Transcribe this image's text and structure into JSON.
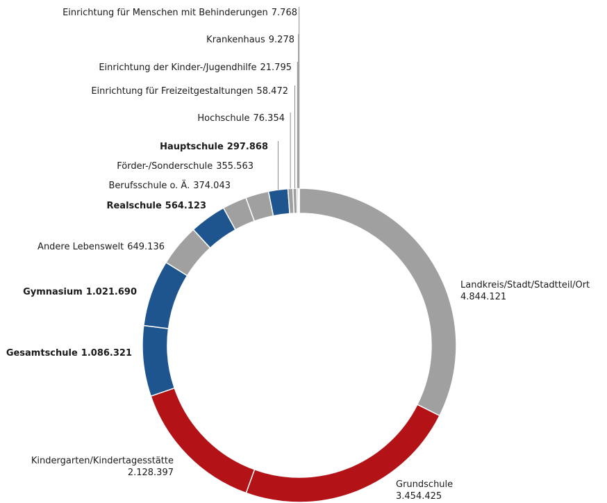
{
  "chart_data": {
    "type": "donut",
    "categories": [
      "Landkreis/Stadt/Stadtteil/Ort",
      "Grundschule",
      "Kindergarten/Kindertagesstätte",
      "Gesamtschule",
      "Gymnasium",
      "Andere Lebenswelt",
      "Realschule",
      "Berufsschule o. Ä.",
      "Förder-/Sonderschule",
      "Hauptschule",
      "Hochschule",
      "Einrichtung für Freizeitgestaltungen",
      "Einrichtung der Kinder-/Jugendhilfe",
      "Krankenhaus",
      "Einrichtung für Menschen mit Behinderungen"
    ],
    "values": [
      4844121,
      3454425,
      2128397,
      1086321,
      1021690,
      649136,
      564123,
      374043,
      355563,
      297868,
      76354,
      58472,
      21795,
      9278,
      7768
    ],
    "value_labels": [
      "4.844.121",
      "3.454.425",
      "2.128.397",
      "1.086.321",
      "1.021.690",
      "649.136",
      "564.123",
      "374.043",
      "355.563",
      "297.868",
      "76.354",
      "58.472",
      "21.795",
      "9.278",
      "7.768"
    ],
    "colors": [
      "#a0a0a0",
      "#b31217",
      "#b31217",
      "#1f558f",
      "#1f558f",
      "#a0a0a0",
      "#1f558f",
      "#a0a0a0",
      "#a0a0a0",
      "#1f558f",
      "#a0a0a0",
      "#a0a0a0",
      "#a0a0a0",
      "#a0a0a0",
      "#a0a0a0"
    ]
  }
}
